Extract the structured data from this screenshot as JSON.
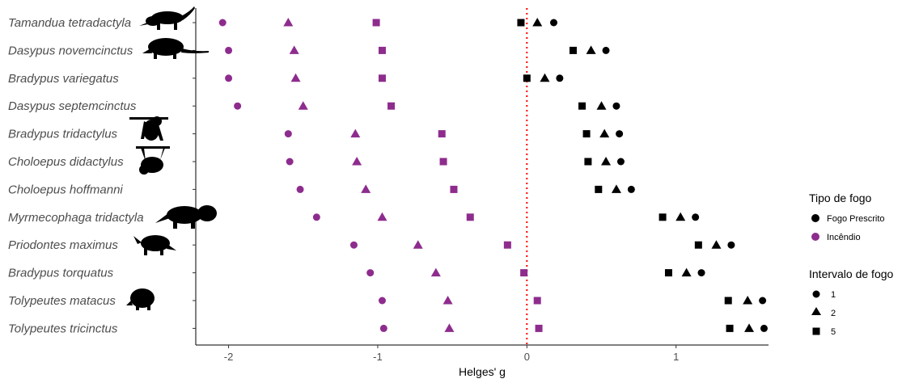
{
  "chart_data": {
    "type": "scatter",
    "xlabel": "Helges' g",
    "ylabel": "",
    "xlim": [
      -2.22,
      1.62
    ],
    "xticks": [
      -2,
      -1,
      0,
      1
    ],
    "xtick_labels": [
      "-2",
      "-1",
      "0",
      "1"
    ],
    "reference_line": {
      "x": 0,
      "style": "dotted",
      "color": "#ff0000"
    },
    "grid": false,
    "colors": {
      "Fogo Prescrito": "#000000",
      "Incêndio": "#8e2c8e"
    },
    "species": [
      "Tamandua tetradactyla",
      "Dasypus novemcinctus",
      "Bradypus variegatus",
      "Dasypus septemcinctus",
      "Bradypus tridactylus",
      "Choloepus didactylus",
      "Choloepus hoffmanni",
      "Myrmecophaga tridactyla",
      "Priodontes maximus",
      "Bradypus torquatus",
      "Tolypeutes matacus",
      "Tolypeutes tricinctus"
    ],
    "series": [
      {
        "fire": "Incêndio",
        "interval": "1",
        "shape": "circle",
        "values": [
          -2.04,
          -2.0,
          -2.0,
          -1.94,
          -1.6,
          -1.59,
          -1.52,
          -1.41,
          -1.16,
          -1.05,
          -0.97,
          -0.96
        ]
      },
      {
        "fire": "Incêndio",
        "interval": "2",
        "shape": "triangle",
        "values": [
          -1.6,
          -1.56,
          -1.55,
          -1.5,
          -1.15,
          -1.14,
          -1.08,
          -0.97,
          -0.73,
          -0.61,
          -0.53,
          -0.52
        ]
      },
      {
        "fire": "Incêndio",
        "interval": "5",
        "shape": "square",
        "values": [
          -1.01,
          -0.97,
          -0.97,
          -0.91,
          -0.57,
          -0.56,
          -0.49,
          -0.38,
          -0.13,
          -0.02,
          0.07,
          0.08
        ]
      },
      {
        "fire": "Fogo Prescrito",
        "interval": "1",
        "shape": "circle",
        "values": [
          0.18,
          0.53,
          0.22,
          0.6,
          0.62,
          0.63,
          0.7,
          1.13,
          1.37,
          1.17,
          1.58,
          1.59
        ]
      },
      {
        "fire": "Fogo Prescrito",
        "interval": "2",
        "shape": "triangle",
        "values": [
          0.07,
          0.43,
          0.12,
          0.5,
          0.52,
          0.53,
          0.6,
          1.03,
          1.27,
          1.07,
          1.48,
          1.49
        ]
      },
      {
        "fire": "Fogo Prescrito",
        "interval": "5",
        "shape": "square",
        "values": [
          -0.04,
          0.31,
          0.0,
          0.37,
          0.4,
          0.41,
          0.48,
          0.91,
          1.15,
          0.95,
          1.35,
          1.36
        ]
      }
    ],
    "legend": {
      "position": "right",
      "fire_title": "Tipo de fogo",
      "fire_items": [
        "Fogo Prescrito",
        "Incêndio"
      ],
      "interval_title": "Intervalo de fogo",
      "interval_items": [
        "1",
        "2",
        "5"
      ]
    },
    "silhouettes": [
      {
        "species": "Tamandua tetradactyla",
        "icon": "tamandua-icon"
      },
      {
        "species": "Dasypus novemcinctus",
        "icon": "armadillo-icon"
      },
      {
        "species": "Bradypus tridactylus",
        "icon": "sloth-icon"
      },
      {
        "species": "Choloepus didactylus",
        "icon": "hanging-sloth-icon"
      },
      {
        "species": "Myrmecophaga tridactyla",
        "icon": "giant-anteater-icon"
      },
      {
        "species": "Priodontes maximus",
        "icon": "giant-armadillo-icon"
      },
      {
        "species": "Tolypeutes matacus",
        "icon": "three-banded-armadillo-icon"
      }
    ]
  }
}
